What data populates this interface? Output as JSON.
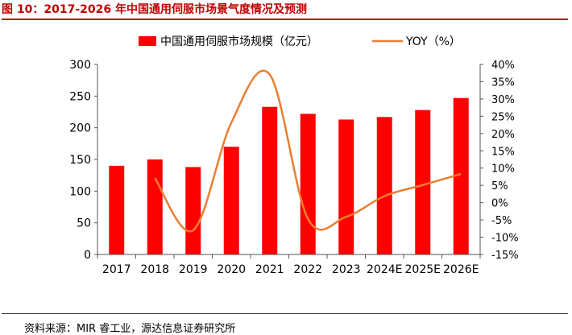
{
  "figure": {
    "title": "图 10：2017-2026 年中国通用伺服市场景气度情况及预测",
    "source": "资料来源：MIR 睿工业，源达信息证券研究所"
  },
  "colors": {
    "bar": "#ff0000",
    "line": "#ed7d31",
    "title": "#c00000",
    "axis_text": "#000000"
  },
  "chart_data": {
    "type": "bar",
    "categories": [
      "2017",
      "2018",
      "2019",
      "2020",
      "2021",
      "2022",
      "2023",
      "2024E",
      "2025E",
      "2026E"
    ],
    "series": [
      {
        "name": "中国通用伺服市场规模（亿元）",
        "type": "bar",
        "axis": "left",
        "values": [
          140,
          150,
          138,
          170,
          233,
          222,
          213,
          217,
          228,
          247
        ]
      },
      {
        "name": "YOY（%）",
        "type": "line",
        "axis": "right",
        "values": [
          null,
          7.1,
          -8.0,
          23.2,
          37.1,
          -4.7,
          -4.1,
          1.9,
          5.1,
          8.3
        ]
      }
    ],
    "y_left": {
      "min": 0,
      "max": 300,
      "ticks": [
        "0",
        "50",
        "100",
        "150",
        "200",
        "250",
        "300"
      ]
    },
    "y_right": {
      "min": -15,
      "max": 40,
      "ticks": [
        "-15%",
        "-10%",
        "-5%",
        "0%",
        "5%",
        "10%",
        "15%",
        "20%",
        "25%",
        "30%",
        "35%",
        "40%"
      ]
    },
    "legend": "top-center",
    "grid": false
  }
}
